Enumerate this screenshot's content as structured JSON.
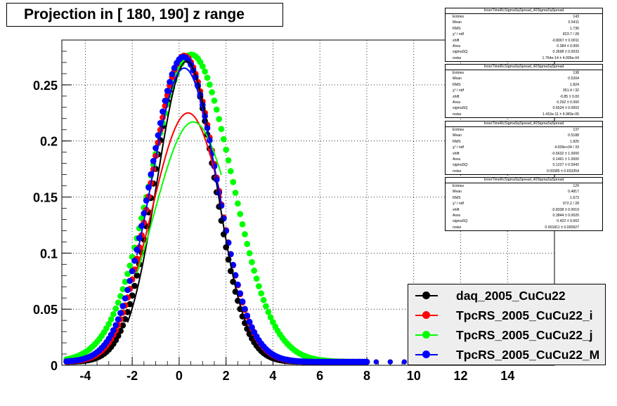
{
  "title": "Projection in [ 180, 190] z range",
  "chart_data": {
    "type": "scatter",
    "title": "Projection in [ 180, 190] z range",
    "xlim": [
      -5,
      16
    ],
    "ylim": [
      0,
      0.29
    ],
    "x_ticks": [
      -4,
      -2,
      0,
      2,
      4,
      6,
      8,
      10,
      12,
      14
    ],
    "y_ticks": [
      0,
      0.05,
      0.1,
      0.15,
      0.2,
      0.25
    ],
    "x_tick_labels": [
      "-4",
      "-2",
      "0",
      "2",
      "4",
      "6",
      "8",
      "10",
      "12",
      "14"
    ],
    "y_tick_labels": [
      "0",
      "0.05",
      "0.1",
      "0.15",
      "0.2",
      "0.25"
    ],
    "grid": true,
    "legend_position": "bottom-right",
    "series": [
      {
        "name": "daq_2005_CuCu22",
        "color": "#000000",
        "marker": "circle",
        "gauss": {
          "amp": 0.273,
          "mean": 0.22,
          "sigma": 1.27,
          "noise": 0.003
        },
        "fit": {
          "amp": 0.268,
          "mean": 0.32,
          "sigma": 1.25,
          "noise": 0.003,
          "x": [
            -2.2,
            3.0
          ]
        }
      },
      {
        "name": "TpcRS_2005_CuCu22_i",
        "color": "#ff0000",
        "marker": "circle",
        "gauss": {
          "amp": 0.273,
          "mean": 0.22,
          "sigma": 1.37,
          "noise": 0.003
        },
        "fit": {
          "amp": 0.222,
          "mean": 0.38,
          "sigma": 1.55,
          "noise": 0.003,
          "x": [
            -1.8,
            1.8
          ]
        }
      },
      {
        "name": "TpcRS_2005_CuCu22_j",
        "color": "#00ff00",
        "marker": "circle",
        "gauss": {
          "amp": 0.274,
          "mean": 0.52,
          "sigma": 1.72,
          "noise": 0.003
        },
        "fit": {
          "amp": 0.214,
          "mean": 0.6,
          "sigma": 1.7,
          "noise": 0.003,
          "x": [
            -1.8,
            1.8
          ]
        }
      },
      {
        "name": "TpcRS_2005_CuCu22_M",
        "color": "#0000ff",
        "marker": "circle",
        "gauss": {
          "amp": 0.272,
          "mean": 0.18,
          "sigma": 1.4,
          "noise": 0.003
        },
        "fit": {
          "amp": 0.262,
          "mean": 0.22,
          "sigma": 1.42,
          "noise": 0.003,
          "x": [
            -1.8,
            1.8
          ]
        }
      }
    ]
  },
  "stats_boxes": [
    {
      "header": "InnerTimeRcSigmaSqSpread_40SigmaSqSpread",
      "rows": [
        [
          "Entries",
          "143"
        ],
        [
          "Mean",
          "0.5411"
        ],
        [
          "RMS",
          "1.736"
        ],
        [
          "χ² / ndf",
          "823.7 / 28"
        ],
        [
          "shift",
          "-0.8067 ± 0.0011"
        ],
        [
          "Area",
          "0.384 ± 0.000"
        ],
        [
          "sigmaSQ",
          "0.3698 ± 0.0033"
        ],
        [
          "noise",
          "1.764e-14 ± 4.095e-04"
        ]
      ]
    },
    {
      "header": "InnerTimeRcSigmaSqSpread_40SigmaSqSpread",
      "rows": [
        [
          "Entries",
          "138"
        ],
        [
          "Mean",
          "0.5204"
        ],
        [
          "RMS",
          "1.824"
        ],
        [
          "χ² / ndf",
          "351.4 / 32"
        ],
        [
          "shift",
          "-0.85 ± 0.00"
        ],
        [
          "Area",
          "0.292 ± 0.000"
        ],
        [
          "sigmaSQ",
          "0.6524 ± 0.0002"
        ],
        [
          "noise",
          "1.416e-11 ± 9.983e-05"
        ]
      ]
    },
    {
      "header": "InnerTimeRcSigmaSqSpread_40SigmaSqSpread",
      "rows": [
        [
          "Entries",
          "137"
        ],
        [
          "Mean",
          "0.5188"
        ],
        [
          "RMS",
          "1.825"
        ],
        [
          "χ² / ndf",
          "4.009e+04 / 33"
        ],
        [
          "shift",
          "-0.6632 ± 1.0000"
        ],
        [
          "Area",
          "0.1461 ± 1.0000"
        ],
        [
          "sigmaSQ",
          "0.1227 ± 0.5942"
        ],
        [
          "noise",
          "0.09385 ± 0.653354"
        ]
      ]
    },
    {
      "header": "InnerTimeRcSigmaSqSpread_40SigmaSqSpread",
      "rows": [
        [
          "Entries",
          "129"
        ],
        [
          "Mean",
          "0.4817"
        ],
        [
          "RMS",
          "1.672"
        ],
        [
          "χ² / ndf",
          "972.2 / 28"
        ],
        [
          "shift",
          "-0.8338 ± 0.0019"
        ],
        [
          "Area",
          "0.3844 ± 0.0020"
        ],
        [
          "sigmaSQ",
          "0.422 ± 0.002"
        ],
        [
          "noise",
          "0.001811 ± 0.000927"
        ]
      ]
    }
  ]
}
